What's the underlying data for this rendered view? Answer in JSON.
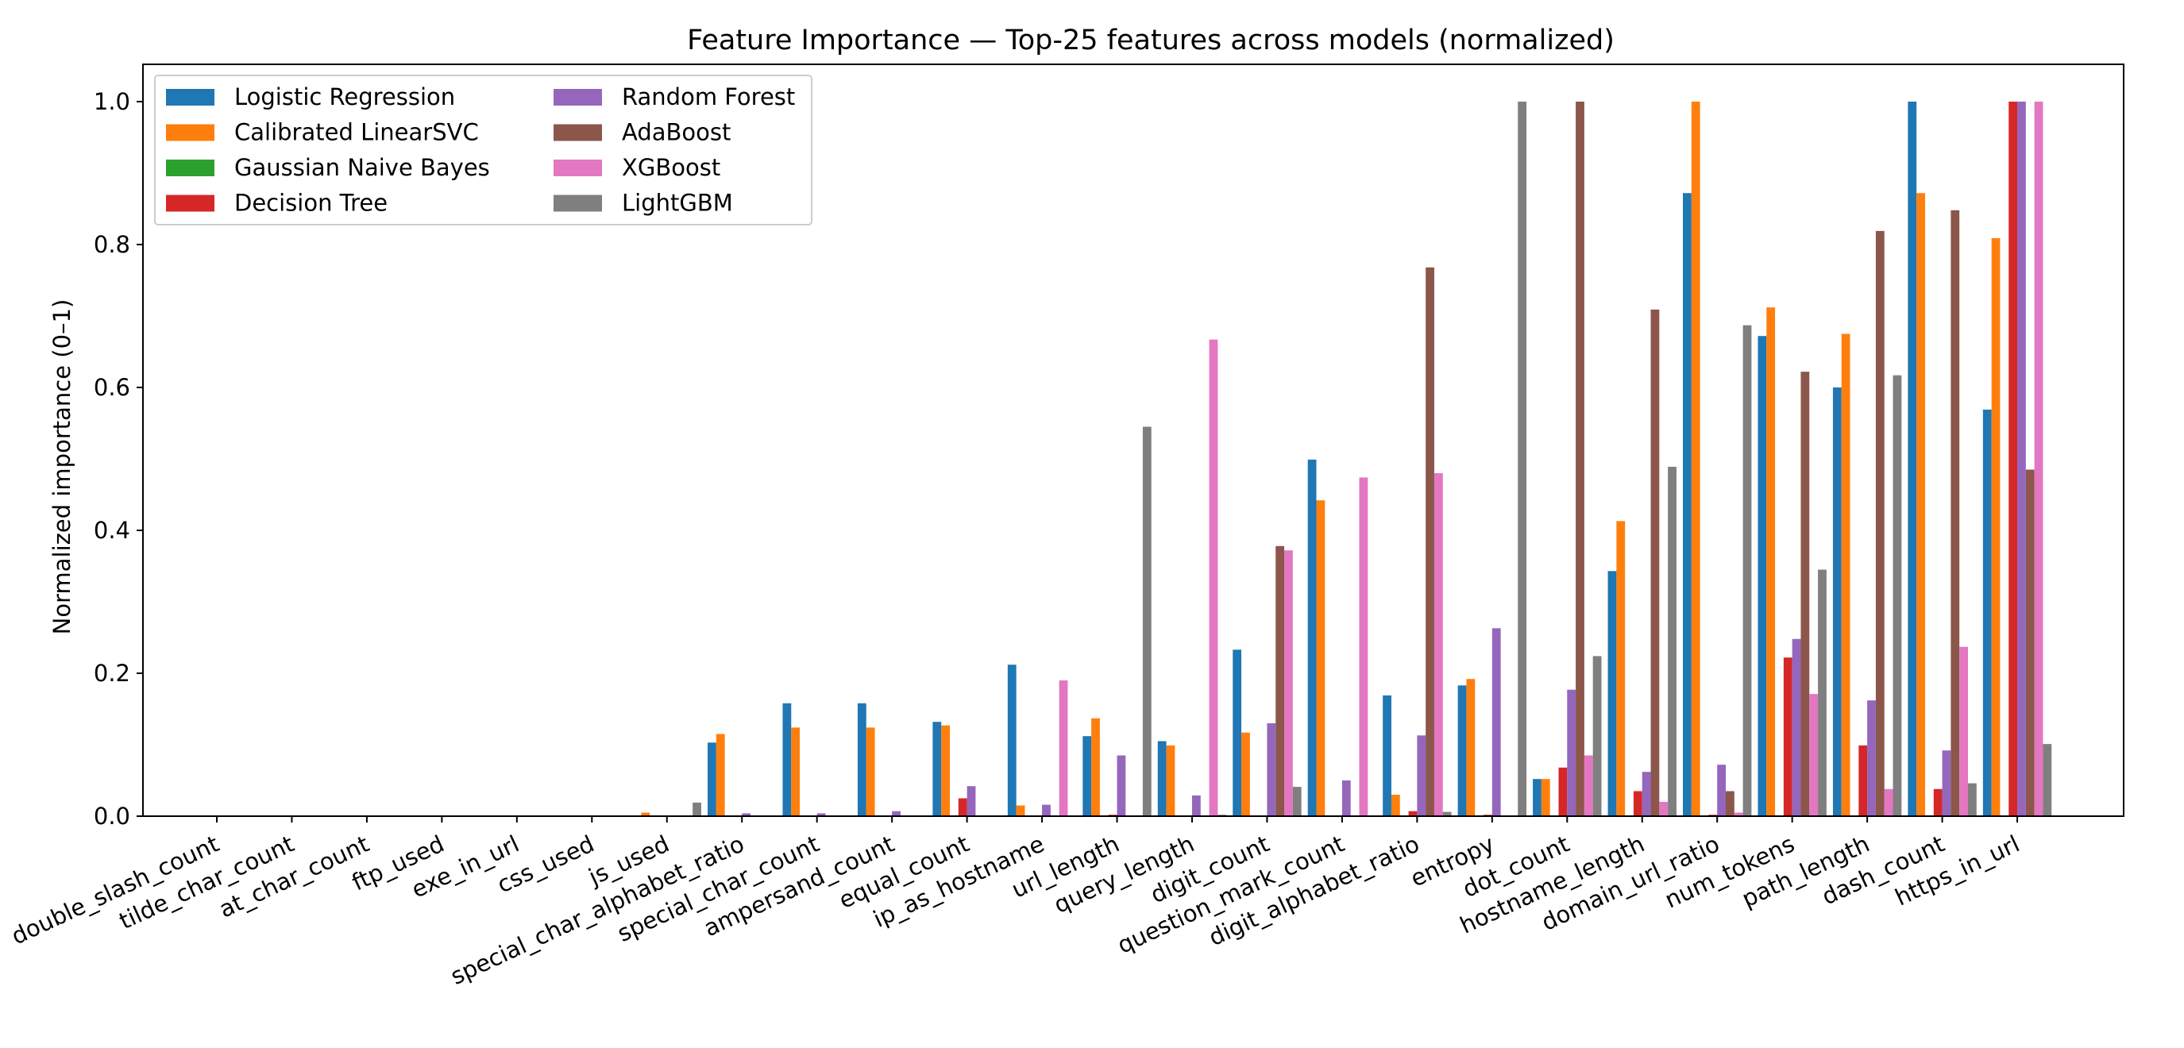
{
  "chart_data": {
    "type": "bar",
    "title": "Feature Importance — Top-25 features across models (normalized)",
    "xlabel": "",
    "ylabel": "Normalized importance (0–1)",
    "ylim": [
      0,
      1.05
    ],
    "yticks": [
      0.0,
      0.2,
      0.4,
      0.6,
      0.8,
      1.0
    ],
    "ytick_labels": [
      "0.0",
      "0.2",
      "0.4",
      "0.6",
      "0.8",
      "1.0"
    ],
    "grid": false,
    "legend_position": "top-left",
    "legend_columns": 2,
    "categories": [
      "double_slash_count",
      "tilde_char_count",
      "at_char_count",
      "ftp_used",
      "exe_in_url",
      "css_used",
      "js_used",
      "special_char_alphabet_ratio",
      "special_char_count",
      "ampersand_count",
      "equal_count",
      "ip_as_hostname",
      "url_length",
      "query_length",
      "digit_count",
      "question_mark_count",
      "digit_alphabet_ratio",
      "entropy",
      "dot_count",
      "hostname_length",
      "domain_url_ratio",
      "num_tokens",
      "path_length",
      "dash_count",
      "https_in_url"
    ],
    "series": [
      {
        "name": "Logistic Regression",
        "color": "#1f77b4",
        "values": [
          0,
          0,
          0,
          0,
          0,
          0,
          0.001,
          0.103,
          0.158,
          0.158,
          0.132,
          0.212,
          0.112,
          0.105,
          0.233,
          0.499,
          0.169,
          0.183,
          0.052,
          0.343,
          0.872,
          0.672,
          0.6,
          1.0,
          0.569
        ]
      },
      {
        "name": "Calibrated LinearSVC",
        "color": "#ff7f0e",
        "values": [
          0,
          0,
          0,
          0,
          0,
          0,
          0.005,
          0.115,
          0.124,
          0.124,
          0.127,
          0.015,
          0.137,
          0.099,
          0.117,
          0.442,
          0.03,
          0.192,
          0.052,
          0.413,
          1.0,
          0.712,
          0.675,
          0.872,
          0.809
        ]
      },
      {
        "name": "Gaussian Naive Bayes",
        "color": "#2ca02c",
        "values": [
          0,
          0,
          0,
          0,
          0,
          0,
          0,
          0,
          0,
          0,
          0,
          0,
          0,
          0,
          0,
          0,
          0,
          0,
          0,
          0,
          0,
          0,
          0,
          0,
          0
        ]
      },
      {
        "name": "Decision Tree",
        "color": "#d62728",
        "values": [
          0,
          0,
          0,
          0,
          0,
          0,
          0,
          0,
          0,
          0,
          0.025,
          0,
          0.002,
          0,
          0,
          0,
          0.007,
          0.002,
          0.068,
          0.035,
          0.002,
          0.222,
          0.099,
          0.038,
          1.0
        ]
      },
      {
        "name": "Random Forest",
        "color": "#9467bd",
        "values": [
          0,
          0,
          0,
          0,
          0,
          0,
          0,
          0.004,
          0.004,
          0.007,
          0.042,
          0.016,
          0.085,
          0.029,
          0.13,
          0.05,
          0.113,
          0.263,
          0.177,
          0.062,
          0.072,
          0.248,
          0.162,
          0.092,
          1.0
        ]
      },
      {
        "name": "AdaBoost",
        "color": "#8c564b",
        "values": [
          0,
          0,
          0,
          0,
          0,
          0,
          0,
          0,
          0,
          0,
          0,
          0,
          0,
          0,
          0.378,
          0,
          0.768,
          0,
          1.0,
          0.709,
          0.035,
          0.622,
          0.819,
          0.848,
          0.485
        ]
      },
      {
        "name": "XGBoost",
        "color": "#e377c2",
        "values": [
          0,
          0,
          0,
          0,
          0,
          0,
          0,
          0,
          0,
          0,
          0,
          0.19,
          0,
          0.667,
          0.372,
          0.474,
          0.48,
          0,
          0.085,
          0.02,
          0.005,
          0.171,
          0.038,
          0.237,
          1.0
        ]
      },
      {
        "name": "LightGBM",
        "color": "#7f7f7f",
        "values": [
          0,
          0,
          0,
          0,
          0,
          0,
          0.019,
          0,
          0,
          0,
          0,
          0,
          0.545,
          0.002,
          0.041,
          0,
          0.006,
          1.0,
          0.224,
          0.489,
          0.687,
          0.345,
          0.617,
          0.046,
          0.101
        ]
      }
    ]
  }
}
